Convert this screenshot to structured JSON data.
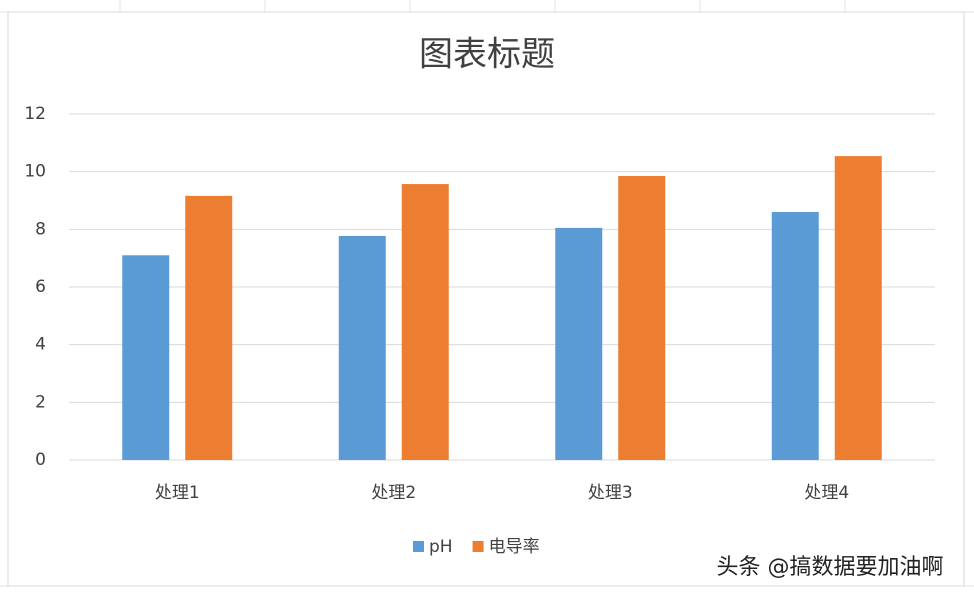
{
  "chart_data": {
    "type": "bar",
    "title": "图表标题",
    "categories": [
      "处理1",
      "处理2",
      "处理3",
      "处理4"
    ],
    "series": [
      {
        "name": "pH",
        "color": "#5b9bd5",
        "values": [
          7.1,
          7.77,
          8.05,
          8.6
        ]
      },
      {
        "name": "电导率",
        "color": "#ed7d31",
        "values": [
          9.16,
          9.57,
          9.85,
          10.54
        ]
      }
    ],
    "ylim": [
      0,
      12
    ],
    "yticks": [
      0,
      2,
      4,
      6,
      8,
      10,
      12
    ],
    "grid": true,
    "legend": "bottom"
  },
  "watermark": "头条 @搞数据要加油啊"
}
